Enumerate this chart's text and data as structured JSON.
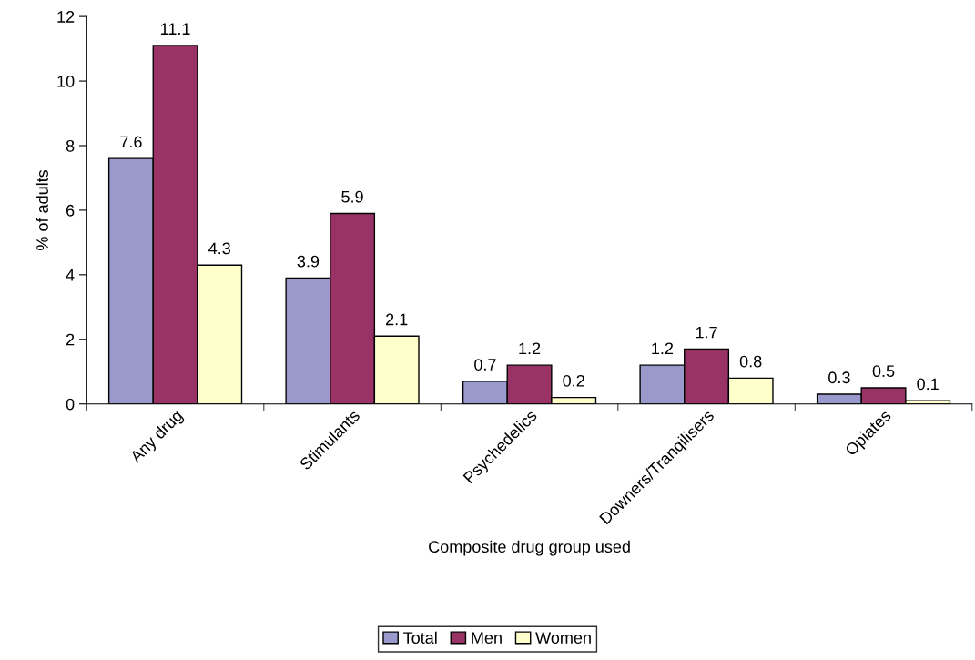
{
  "chart_data": {
    "type": "bar",
    "xlabel": "Composite drug group used",
    "ylabel": "% of adults",
    "categories": [
      "Any drug",
      "Stimulants",
      "Psychedelics",
      "Downers/Tranqilisers",
      "Opiates"
    ],
    "series": [
      {
        "name": "Total",
        "color": "#9999cc",
        "values": [
          7.6,
          3.9,
          0.7,
          1.2,
          0.3
        ]
      },
      {
        "name": "Men",
        "color": "#993366",
        "values": [
          11.1,
          5.9,
          1.2,
          1.7,
          0.5
        ]
      },
      {
        "name": "Women",
        "color": "#ffffcc",
        "values": [
          4.3,
          2.1,
          0.2,
          0.8,
          0.1
        ]
      }
    ],
    "ylim": [
      0,
      12
    ],
    "yticks": [
      0,
      2,
      4,
      6,
      8,
      10,
      12
    ],
    "grid": false,
    "legend": "bottom",
    "data_labels": true
  }
}
